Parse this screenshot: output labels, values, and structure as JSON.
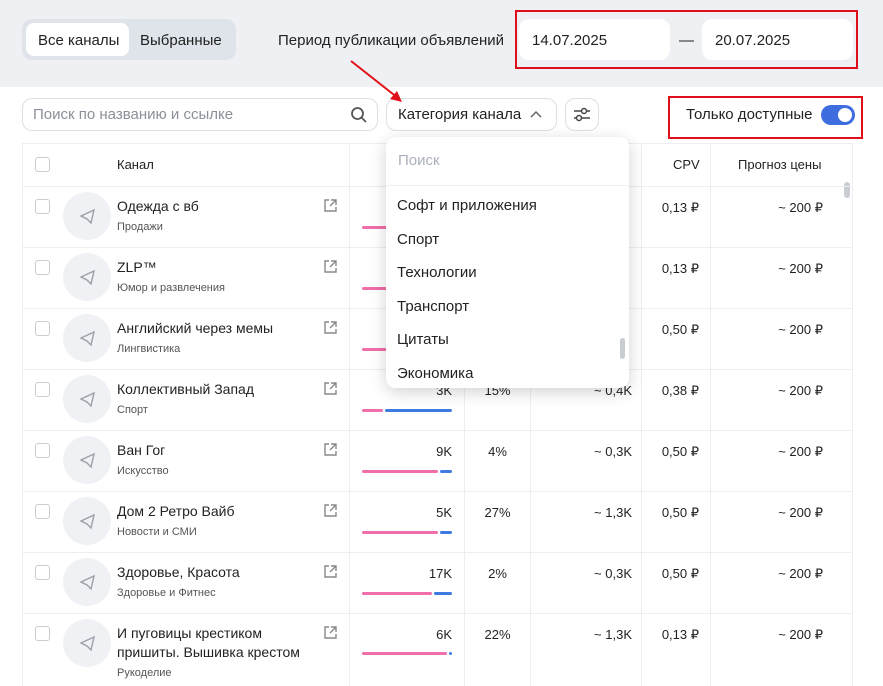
{
  "tabs": [
    "Все каналы",
    "Выбранные"
  ],
  "period": {
    "label": "Период публикации объявлений",
    "from": "14.07.2025",
    "separator": "—",
    "to": "20.07.2025"
  },
  "search_placeholder": "Поиск по названию и ссылке",
  "category_button": "Категория канала",
  "only_available": "Только доступные",
  "table": {
    "headers": {
      "channel": "Канал",
      "cpv": "CPV",
      "price": "Прогноз цены"
    },
    "rows": [
      {
        "name": "Одежда с вб",
        "category": "Продажи",
        "cpv": "0,13 ₽",
        "price": "~ 200 ₽"
      },
      {
        "name": "ZLP™",
        "category": "Юмор и развлечения",
        "cpv": "0,13 ₽",
        "price": "~ 200 ₽"
      },
      {
        "name": "Английский через мемы",
        "category": "Лингвистика",
        "cpv": "0,50 ₽",
        "price": "~ 200 ₽"
      },
      {
        "name": "Коллективный Запад",
        "category": "Спорт",
        "subscribers": "3K",
        "percent": "15%",
        "views": "~ 0,4K",
        "cpv": "0,38 ₽",
        "price": "~ 200 ₽"
      },
      {
        "name": "Ван Гог",
        "category": "Искусство",
        "subscribers": "9K",
        "percent": "4%",
        "views": "~ 0,3K",
        "cpv": "0,50 ₽",
        "price": "~ 200 ₽"
      },
      {
        "name": "Дом 2 Ретро Вайб",
        "category": "Новости и СМИ",
        "subscribers": "5K",
        "percent": "27%",
        "views": "~ 1,3K",
        "cpv": "0,50 ₽",
        "price": "~ 200 ₽"
      },
      {
        "name": "Здоровье, Красота",
        "category": "Здоровье и Фитнес",
        "subscribers": "17K",
        "percent": "2%",
        "views": "~ 0,3K",
        "cpv": "0,50 ₽",
        "price": "~ 200 ₽"
      },
      {
        "name": "И пуговицы крестиком пришиты. Вышивка крестом",
        "category": "Рукоделие",
        "subscribers": "6K",
        "percent": "22%",
        "views": "~ 1,3K",
        "cpv": "0,13 ₽",
        "price": "~ 200 ₽"
      }
    ]
  },
  "dropdown": {
    "search_placeholder": "Поиск",
    "items": [
      "Софт и приложения",
      "Спорт",
      "Технологии",
      "Транспорт",
      "Цитаты",
      "Экономика"
    ]
  }
}
